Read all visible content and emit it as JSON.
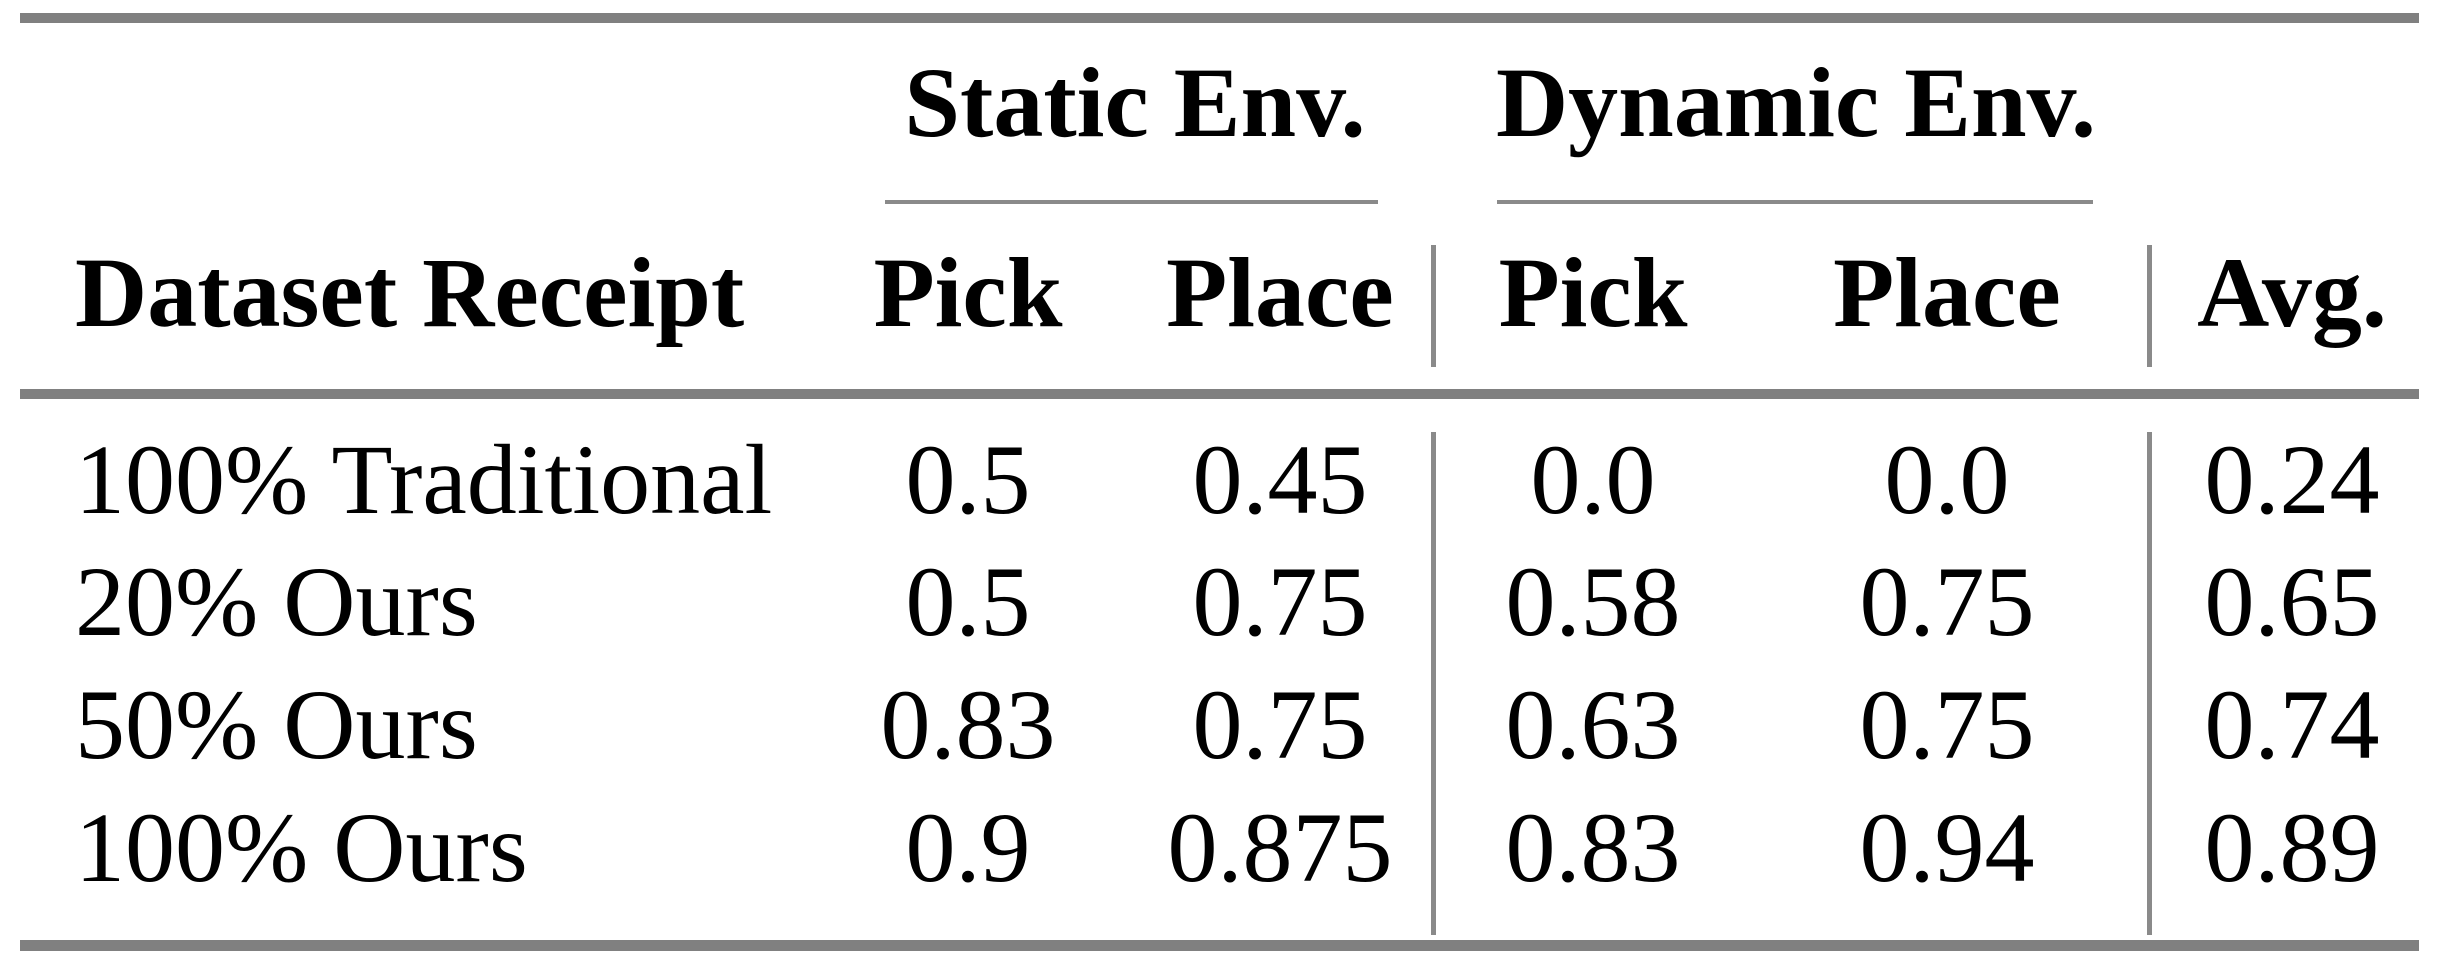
{
  "page": {
    "background_color": "#ffffff",
    "text_color": "#000000",
    "rule_color": "#808080"
  },
  "table": {
    "groups": [
      {
        "label": "Static Env."
      },
      {
        "label": "Dynamic Env."
      }
    ],
    "columns": [
      {
        "label": "Dataset Receipt"
      },
      {
        "label": "Pick",
        "group": "Static Env."
      },
      {
        "label": "Place",
        "group": "Static Env."
      },
      {
        "label": "Pick",
        "group": "Dynamic Env."
      },
      {
        "label": "Place",
        "group": "Dynamic Env."
      },
      {
        "label": "Avg."
      }
    ],
    "rows": [
      {
        "cells": [
          "100% Traditional",
          "0.5",
          "0.45",
          "0.0",
          "0.0",
          "0.24"
        ]
      },
      {
        "cells": [
          "20% Ours",
          "0.5",
          "0.75",
          "0.58",
          "0.75",
          "0.65"
        ]
      },
      {
        "cells": [
          "50% Ours",
          "0.83",
          "0.75",
          "0.63",
          "0.75",
          "0.74"
        ]
      },
      {
        "cells": [
          "100% Ours",
          "0.9",
          "0.875",
          "0.83",
          "0.94",
          "0.89"
        ]
      }
    ]
  }
}
